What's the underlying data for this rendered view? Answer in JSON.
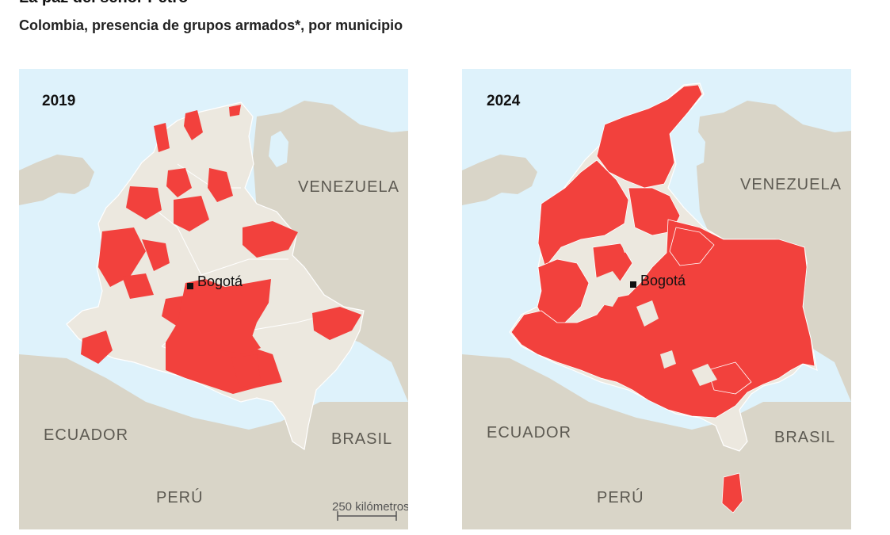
{
  "title": "La paz del señor Petro",
  "subtitle": "Colombia, presencia de grupos armados*, por municipio",
  "colors": {
    "sea": "#def2fb",
    "neighbor_land": "#d9d5c8",
    "colombia_land": "#ece8df",
    "armed_presence": "#f2413d",
    "border": "#ffffff"
  },
  "maps": [
    {
      "year": "2019",
      "labels": {
        "venezuela": "VENEZUELA",
        "ecuador": "ECUADOR",
        "peru": "PERÚ",
        "brasil": "BRASIL",
        "capital": "Bogotá"
      },
      "scale_label": "250 kilómetros"
    },
    {
      "year": "2024",
      "labels": {
        "venezuela": "VENEZUELA",
        "ecuador": "ECUADOR",
        "peru": "PERÚ",
        "brasil": "BRASIL",
        "capital": "Bogotá"
      }
    }
  ]
}
